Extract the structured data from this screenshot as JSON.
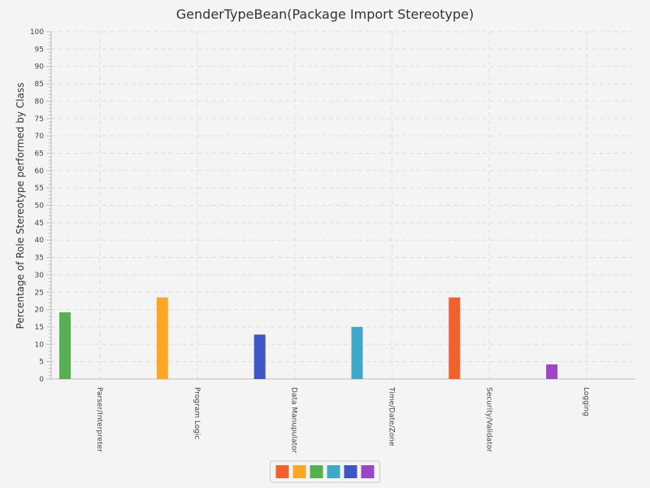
{
  "chart_data": {
    "type": "bar",
    "title": "GenderTypeBean(Package Import Stereotype)",
    "xlabel": "",
    "ylabel": "Percentage of Role Stereotype performed by Class",
    "ylim": [
      0,
      100
    ],
    "y_major_ticks": [
      0,
      5,
      10,
      15,
      20,
      25,
      30,
      35,
      40,
      45,
      50,
      55,
      60,
      65,
      70,
      75,
      80,
      85,
      90,
      95,
      100
    ],
    "grid": true,
    "legend_position": "bottom-center",
    "categories": [
      "Parser/Interpreter",
      "Program Logic",
      "Data Manupulator",
      "Time/Date/Zone",
      "Security/Validator",
      "Logging"
    ],
    "series": [
      {
        "color": "#f0622d",
        "values": [
          0,
          0,
          0,
          0,
          23.5,
          0
        ]
      },
      {
        "color": "#fca625",
        "values": [
          0,
          23.5,
          0,
          0,
          0,
          0
        ]
      },
      {
        "color": "#55b050",
        "values": [
          19.2,
          0,
          0,
          0,
          0,
          0
        ]
      },
      {
        "color": "#3ea8c9",
        "values": [
          0,
          0,
          0,
          15,
          0,
          0
        ]
      },
      {
        "color": "#3f56c4",
        "values": [
          0,
          0,
          12.8,
          0,
          0,
          0
        ]
      },
      {
        "color": "#9a46c6",
        "values": [
          0,
          0,
          0,
          0,
          0,
          4.2
        ]
      }
    ]
  }
}
